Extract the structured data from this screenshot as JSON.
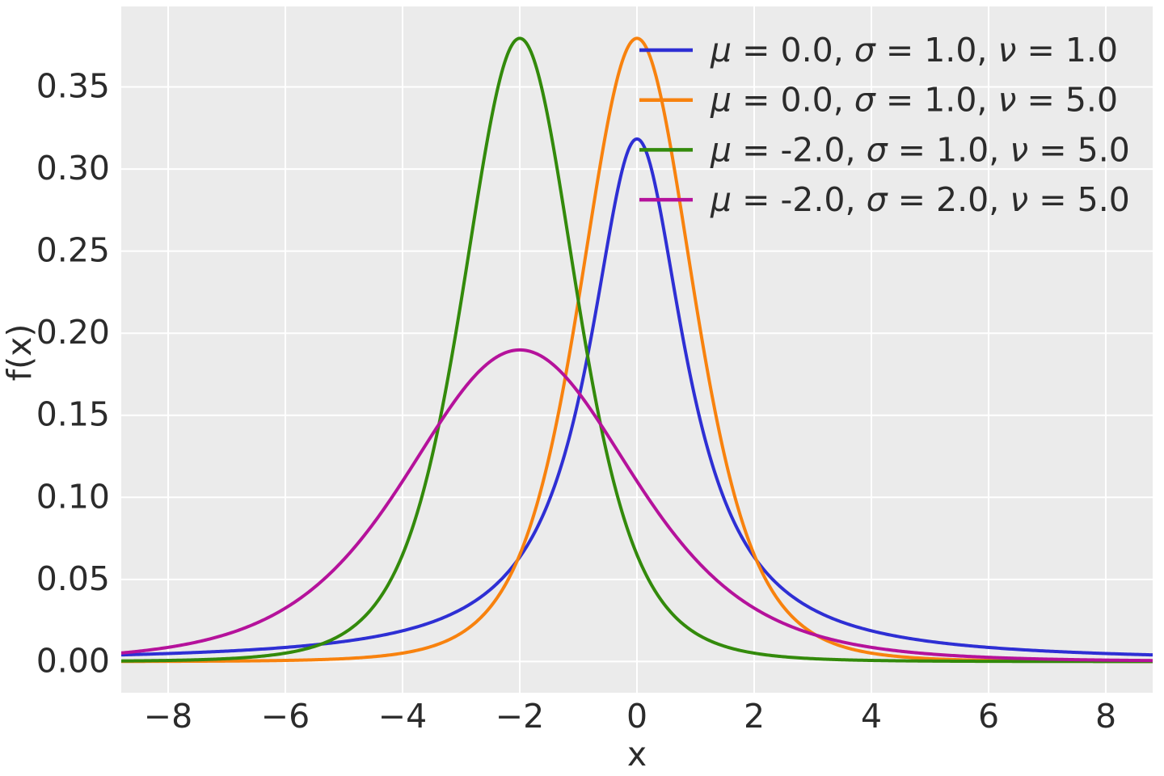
{
  "page": {
    "figure_background": "#ffffff"
  },
  "chart_data": {
    "type": "line",
    "description": "Student's t location-scale probability density functions f(x) for four parameter sets",
    "title": "",
    "xlabel": "x",
    "ylabel": "f(x)",
    "xlim": [
      -8.8,
      8.8
    ],
    "ylim": [
      -0.019,
      0.399
    ],
    "xticks": [
      -8,
      -6,
      -4,
      -2,
      0,
      2,
      4,
      6,
      8
    ],
    "xtick_labels": [
      "−8",
      "−6",
      "−4",
      "−2",
      "0",
      "2",
      "4",
      "6",
      "8"
    ],
    "yticks": [
      0.0,
      0.05,
      0.1,
      0.15,
      0.2,
      0.25,
      0.3,
      0.35
    ],
    "ytick_labels": [
      "0.00",
      "0.05",
      "0.10",
      "0.15",
      "0.20",
      "0.25",
      "0.30",
      "0.35"
    ],
    "grid": true,
    "legend": {
      "position": "upper right",
      "frame": false
    },
    "style": {
      "axes_background": "#ebebeb",
      "grid_color": "#ffffff",
      "text_color": "#2b2b2b",
      "figure_background": "#ffffff",
      "curve_line_width": 4
    },
    "series": [
      {
        "label": "μ = 0.0, σ = 1.0, ν = 1.0",
        "params": {
          "mu": 0.0,
          "sigma": 1.0,
          "nu": 1.0
        },
        "color": "#2e2fd4",
        "peak": {
          "x": 0.0,
          "y": 0.3183
        }
      },
      {
        "label": "μ = 0.0, σ = 1.0, ν = 5.0",
        "params": {
          "mu": 0.0,
          "sigma": 1.0,
          "nu": 5.0
        },
        "color": "#f8820e",
        "peak": {
          "x": 0.0,
          "y": 0.3796
        }
      },
      {
        "label": "μ = -2.0, σ = 1.0, ν = 5.0",
        "params": {
          "mu": -2.0,
          "sigma": 1.0,
          "nu": 5.0
        },
        "color": "#338a0b",
        "peak": {
          "x": -2.0,
          "y": 0.3796
        }
      },
      {
        "label": "μ = -2.0, σ = 2.0, ν = 5.0",
        "params": {
          "mu": -2.0,
          "sigma": 2.0,
          "nu": 5.0
        },
        "color": "#b5129b",
        "peak": {
          "x": -2.0,
          "y": 0.1898
        }
      }
    ],
    "samples": {
      "x": [
        -8,
        -7,
        -6,
        -5,
        -4,
        -3,
        -2,
        -1,
        0,
        1,
        2,
        3,
        4,
        5,
        6,
        7,
        8
      ],
      "series_y": [
        [
          0.0049,
          0.0064,
          0.0086,
          0.0122,
          0.0187,
          0.0318,
          0.0637,
          0.1592,
          0.3183,
          0.1592,
          0.0637,
          0.0318,
          0.0187,
          0.0122,
          0.0086,
          0.0064,
          0.0049
        ],
        [
          0.0001,
          0.0003,
          0.0007,
          0.0018,
          0.0051,
          0.0173,
          0.0651,
          0.2197,
          0.3796,
          0.2197,
          0.0651,
          0.0173,
          0.0051,
          0.0018,
          0.0007,
          0.0003,
          0.0001
        ],
        [
          0.0007,
          0.0018,
          0.0051,
          0.0173,
          0.0651,
          0.2197,
          0.3796,
          0.2197,
          0.0651,
          0.0173,
          0.0051,
          0.0018,
          0.0007,
          0.0003,
          0.0001,
          0.0001,
          0.0
        ],
        [
          0.0087,
          0.0167,
          0.0326,
          0.0623,
          0.1099,
          0.164,
          0.1898,
          0.164,
          0.1099,
          0.0623,
          0.0326,
          0.0167,
          0.0087,
          0.0046,
          0.0026,
          0.0015,
          0.0009
        ]
      ]
    }
  }
}
